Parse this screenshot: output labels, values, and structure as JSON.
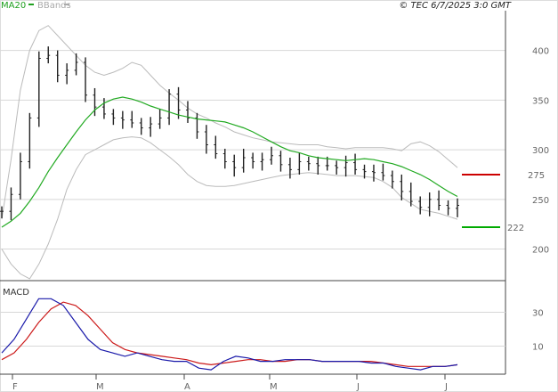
{
  "header": {
    "legend": [
      {
        "label": "MA20",
        "color": "#20a020"
      },
      {
        "label": "BBands",
        "color": "#aaaaaa"
      }
    ],
    "timestamp": "© TEC 6/7/2025 3:0 GMT"
  },
  "colors": {
    "price": "#222222",
    "ma20": "#22aa22",
    "bbands": "#bbbbbb",
    "target_high": "#cc0000",
    "target_low": "#00aa00",
    "macd": "#1a1aaa",
    "signal": "#cc1a1a",
    "grid": "#d8d8d8"
  },
  "chart_data": [
    {
      "type": "line",
      "title": "",
      "x_labels": [
        "F",
        "M",
        "A",
        "M",
        "J",
        "J"
      ],
      "y_ticks": [
        200,
        250,
        300,
        350,
        400
      ],
      "ylim": [
        170,
        440
      ],
      "series": [
        {
          "name": "MA20",
          "values": [
            222,
            228,
            236,
            248,
            262,
            278,
            292,
            305,
            318,
            330,
            340,
            347,
            351,
            353,
            351,
            348,
            344,
            341,
            338,
            335,
            333,
            331,
            330,
            329,
            328,
            325,
            322,
            318,
            313,
            308,
            303,
            299,
            297,
            294,
            292,
            291,
            290,
            289,
            290,
            291,
            290,
            288,
            286,
            283,
            279,
            275,
            270,
            264,
            258,
            253
          ]
        },
        {
          "name": "BBands upper",
          "values": [
            230,
            290,
            360,
            400,
            420,
            425,
            415,
            405,
            395,
            385,
            378,
            375,
            378,
            382,
            388,
            385,
            375,
            365,
            357,
            350,
            342,
            336,
            332,
            327,
            323,
            318,
            315,
            312,
            310,
            308,
            307,
            306,
            305,
            305,
            305,
            303,
            302,
            301,
            302,
            302,
            302,
            302,
            301,
            299,
            306,
            308,
            304,
            298,
            290,
            282
          ]
        },
        {
          "name": "BBands lower",
          "values": [
            200,
            185,
            175,
            170,
            185,
            205,
            230,
            260,
            280,
            295,
            300,
            305,
            310,
            312,
            313,
            312,
            307,
            300,
            293,
            285,
            275,
            268,
            264,
            263,
            263,
            264,
            266,
            268,
            270,
            272,
            274,
            275,
            276,
            277,
            276,
            275,
            274,
            274,
            274,
            273,
            272,
            268,
            262,
            252,
            246,
            240,
            238,
            236,
            233,
            230
          ]
        },
        {
          "name": "Price",
          "values": [
            238,
            255,
            288,
            332,
            392,
            395,
            375,
            380,
            388,
            355,
            343,
            336,
            332,
            330,
            327,
            322,
            326,
            332,
            356,
            340,
            332,
            318,
            305,
            296,
            288,
            282,
            292,
            288,
            290,
            294,
            285,
            280,
            288,
            286,
            284,
            284,
            282,
            287,
            280,
            278,
            277,
            274,
            268,
            258,
            248,
            242,
            250,
            244,
            241,
            244
          ]
        }
      ],
      "targets": [
        {
          "label": "275",
          "value": 275
        },
        {
          "label": "222",
          "value": 222
        }
      ]
    },
    {
      "type": "line",
      "title": "MACD",
      "x_labels": [
        "F",
        "M",
        "A",
        "M",
        "J",
        "J"
      ],
      "y_ticks": [
        10,
        30
      ],
      "ylim": [
        -5,
        45
      ],
      "series": [
        {
          "name": "MACD",
          "values": [
            6,
            14,
            26,
            38,
            38,
            34,
            24,
            14,
            8,
            6,
            4,
            6,
            4,
            2,
            1,
            1,
            -3,
            -4,
            1,
            4,
            3,
            1,
            1,
            2,
            2,
            2,
            1,
            1,
            1,
            1,
            0,
            0,
            -2,
            -3,
            -4,
            -2,
            -2,
            -1
          ]
        },
        {
          "name": "Signal",
          "values": [
            2,
            6,
            14,
            24,
            32,
            36,
            34,
            28,
            20,
            12,
            8,
            6,
            5,
            4,
            3,
            2,
            0,
            -1,
            0,
            1,
            2,
            2,
            1,
            1,
            2,
            2,
            1,
            1,
            1,
            1,
            1,
            0,
            -1,
            -2,
            -2,
            -2,
            -2,
            -1
          ]
        }
      ]
    }
  ]
}
